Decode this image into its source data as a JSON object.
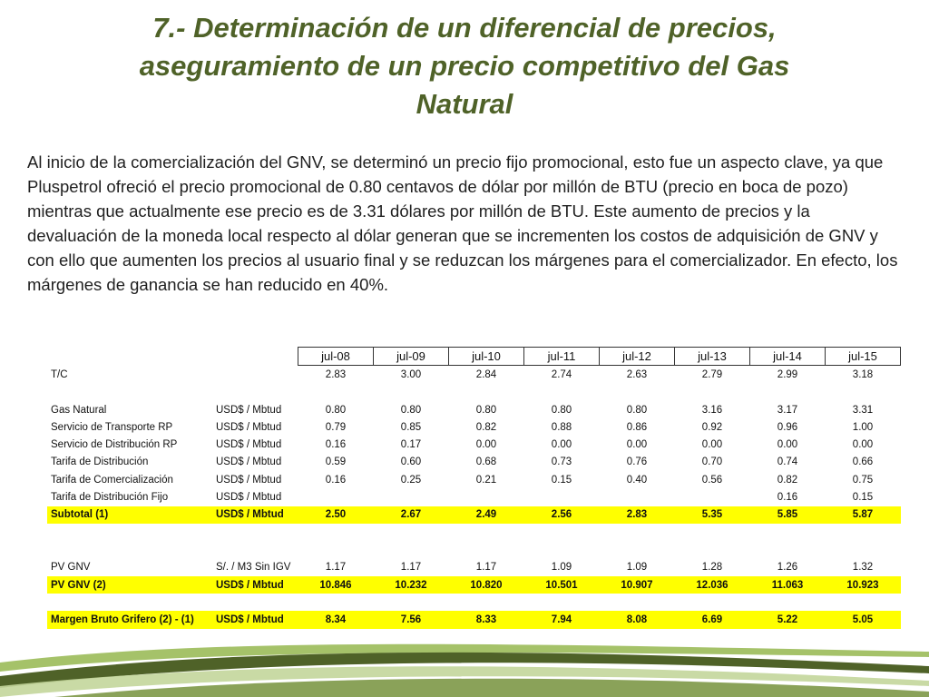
{
  "slide": {
    "title_line1": "7.- Determinación de un diferencial de precios,",
    "title_line2": "aseguramiento de un precio competitivo del Gas",
    "title_line3": "Natural",
    "paragraph": "Al  inicio de la comercialización del GNV, se determinó un precio fijo promocional, esto fue un aspecto clave, ya que Pluspetrol ofreció el precio promocional de 0.80 centavos de dólar por millón de BTU (precio en boca de pozo) mientras que actualmente ese precio es de 3.31 dólares por millón de BTU. Este aumento de precios y la devaluación de la moneda local respecto al dólar generan que se incrementen los costos de adquisición de GNV y con ello que aumenten los precios al usuario final y se reduzcan los márgenes para el comercializador. En efecto, los márgenes de ganancia se han reducido en 40%."
  },
  "table": {
    "headers": [
      "jul-08",
      "jul-09",
      "jul-10",
      "jul-11",
      "jul-12",
      "jul-13",
      "jul-14",
      "jul-15"
    ],
    "rows": [
      {
        "label": "T/C",
        "unit": "",
        "values": [
          "2.83",
          "3.00",
          "2.84",
          "2.74",
          "2.63",
          "2.79",
          "2.99",
          "3.18"
        ]
      },
      {
        "label": "",
        "unit": "",
        "values": [
          "",
          "",
          "",
          "",
          "",
          "",
          "",
          ""
        ]
      },
      {
        "label": "Gas Natural",
        "unit": "USD$ / Mbtud",
        "values": [
          "0.80",
          "0.80",
          "0.80",
          "0.80",
          "0.80",
          "3.16",
          "3.17",
          "3.31"
        ]
      },
      {
        "label": "Servicio de Transporte RP",
        "unit": "USD$ / Mbtud",
        "values": [
          "0.79",
          "0.85",
          "0.82",
          "0.88",
          "0.86",
          "0.92",
          "0.96",
          "1.00"
        ]
      },
      {
        "label": "Servicio de Distribución RP",
        "unit": "USD$ / Mbtud",
        "values": [
          "0.16",
          "0.17",
          "0.00",
          "0.00",
          "0.00",
          "0.00",
          "0.00",
          "0.00"
        ]
      },
      {
        "label": "Tarifa  de Distribución",
        "unit": "USD$ / Mbtud",
        "values": [
          "0.59",
          "0.60",
          "0.68",
          "0.73",
          "0.76",
          "0.70",
          "0.74",
          "0.66"
        ]
      },
      {
        "label": "Tarifa de Comercialización",
        "unit": "USD$ / Mbtud",
        "values": [
          "0.16",
          "0.25",
          "0.21",
          "0.15",
          "0.40",
          "0.56",
          "0.82",
          "0.75"
        ]
      },
      {
        "label": "Tarifa de Distribución Fijo",
        "unit": "USD$ / Mbtud",
        "values": [
          "",
          "",
          "",
          "",
          "",
          "",
          "0.16",
          "0.15"
        ]
      },
      {
        "label": "Subtotal (1)",
        "unit": "USD$ / Mbtud",
        "values": [
          "2.50",
          "2.67",
          "2.49",
          "2.56",
          "2.83",
          "5.35",
          "5.85",
          "5.87"
        ]
      },
      {
        "label": "",
        "unit": "",
        "values": [
          "",
          "",
          "",
          "",
          "",
          "",
          "",
          ""
        ]
      },
      {
        "label": "",
        "unit": "",
        "values": [
          "",
          "",
          "",
          "",
          "",
          "",
          "",
          ""
        ]
      },
      {
        "label": "PV GNV",
        "unit": "S/. / M3 Sin IGV",
        "values": [
          "1.17",
          "1.17",
          "1.17",
          "1.09",
          "1.09",
          "1.28",
          "1.26",
          "1.32"
        ]
      },
      {
        "label": "PV GNV  (2)",
        "unit": "USD$ / Mbtud",
        "values": [
          "10.846",
          "10.232",
          "10.820",
          "10.501",
          "10.907",
          "12.036",
          "11.063",
          "10.923"
        ]
      },
      {
        "label": "",
        "unit": "",
        "values": [
          "",
          "",
          "",
          "",
          "",
          "",
          "",
          ""
        ]
      },
      {
        "label": "Margen Bruto Grifero  (2) - (1)",
        "unit": "USD$ / Mbtud",
        "values": [
          "8.34",
          "7.56",
          "8.33",
          "7.94",
          "8.08",
          "6.69",
          "5.22",
          "5.05"
        ]
      }
    ]
  }
}
